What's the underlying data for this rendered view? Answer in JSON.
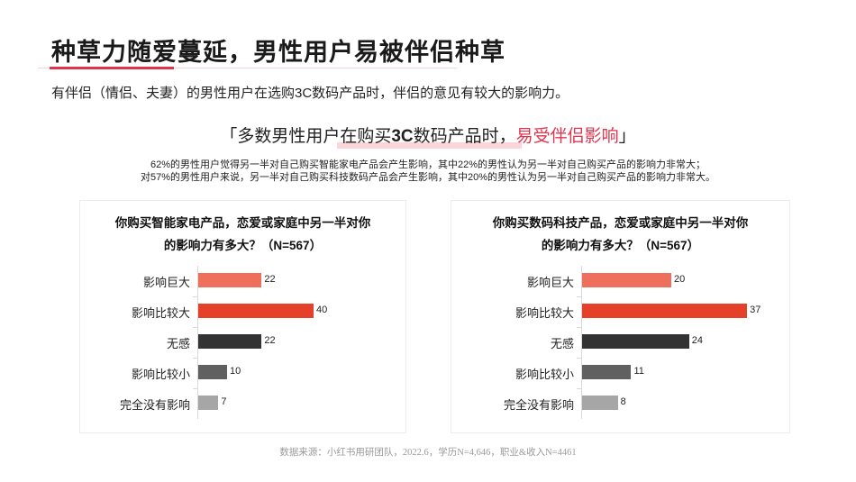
{
  "header": {
    "title": "种草力随爱蔓延，男性用户易被伴侣种草",
    "subtitle": "有伴侣（情侣、夫妻）的男性用户在选购3C数码产品时，伴侣的意见有较大的影响力。",
    "accent_color": "#e0344f"
  },
  "quote": {
    "open": "「多数男性用户在购买",
    "bold": "3C",
    "middle": "数码产品时，",
    "highlight": "易受伴侣影响",
    "close": "」"
  },
  "description": {
    "line1": "62%的男性用户觉得另一半对自己购买智能家电产品会产生影响，其中22%的男性认为另一半对自己购买产品的影响力非常大；",
    "line2": "对57%的男性用户来说，另一半对自己购买科技数码产品会产生影响，其中20%的男性认为另一半对自己购买产品的影响力非常大。"
  },
  "chart_data": [
    {
      "type": "bar",
      "orientation": "horizontal",
      "title_line1": "你购买智能家电产品，恋爱或家庭中另一半对你",
      "title_line2": "的影响力有多大？（N=567）",
      "categories": [
        "影响巨大",
        "影响比较大",
        "无感",
        "影响比较小",
        "完全没有影响"
      ],
      "values": [
        22,
        40,
        22,
        10,
        7
      ],
      "colors": [
        "#ee6f5b",
        "#e4402a",
        "#333333",
        "#606060",
        "#a6a6a6"
      ],
      "value_labels": [
        "22",
        "40",
        "22",
        "10",
        "7"
      ],
      "xlabel": "",
      "ylabel": "",
      "grid": false,
      "legend": "none"
    },
    {
      "type": "bar",
      "orientation": "horizontal",
      "title_line1": "你购买数码科技产品，恋爱或家庭中另一半对你",
      "title_line2": "的影响力有多大？（N=567）",
      "categories": [
        "影响巨大",
        "影响比较大",
        "无感",
        "影响比较小",
        "完全没有影响"
      ],
      "values": [
        20,
        37,
        24,
        11,
        8
      ],
      "colors": [
        "#ee6f5b",
        "#e4402a",
        "#333333",
        "#606060",
        "#a6a6a6"
      ],
      "value_labels": [
        "20",
        "37",
        "24",
        "11",
        "8"
      ],
      "xlabel": "",
      "ylabel": "",
      "grid": false,
      "legend": "none"
    }
  ],
  "footer": {
    "source": "数据来源：小红书用研团队，2022.6，学历N=4,646，职业&收入N=4461"
  }
}
